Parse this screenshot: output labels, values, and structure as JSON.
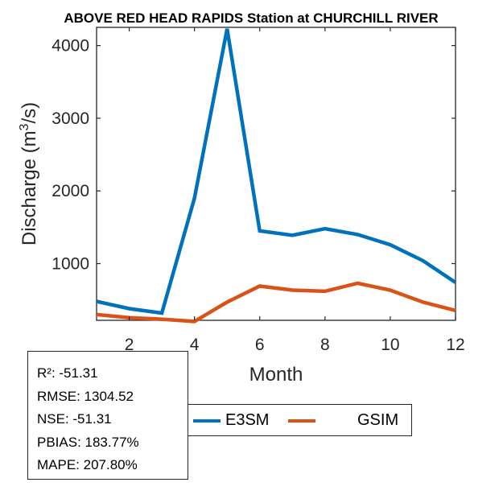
{
  "chart_data": {
    "type": "line",
    "title": "ABOVE RED HEAD RAPIDS  Station at  CHURCHILL RIVER",
    "xlabel": "Month",
    "ylabel_prefix": "Discharge (m",
    "ylabel_sup": "3",
    "ylabel_suffix": "/s)",
    "xlim": [
      1,
      12
    ],
    "ylim": [
      220,
      4250
    ],
    "x_ticks": [
      2,
      4,
      6,
      8,
      10,
      12
    ],
    "y_ticks": [
      1000,
      2000,
      3000,
      4000
    ],
    "grid": false,
    "legend_placement": "bottom-center",
    "x": [
      1,
      2,
      3,
      4,
      5,
      6,
      7,
      8,
      9,
      10,
      11,
      12
    ],
    "series": [
      {
        "name": "E3SM",
        "color": "#0072BD",
        "values": [
          480,
          380,
          320,
          1900,
          4230,
          1450,
          1390,
          1480,
          1400,
          1260,
          1040,
          740
        ]
      },
      {
        "name": "GSIM",
        "color": "#D95319",
        "values": [
          300,
          255,
          235,
          205,
          470,
          690,
          635,
          620,
          730,
          635,
          470,
          355
        ]
      }
    ]
  },
  "stats": [
    "R²: -51.31",
    "RMSE: 1304.52",
    "NSE: -51.31",
    "PBIAS: 183.77%",
    "MAPE: 207.80%"
  ]
}
